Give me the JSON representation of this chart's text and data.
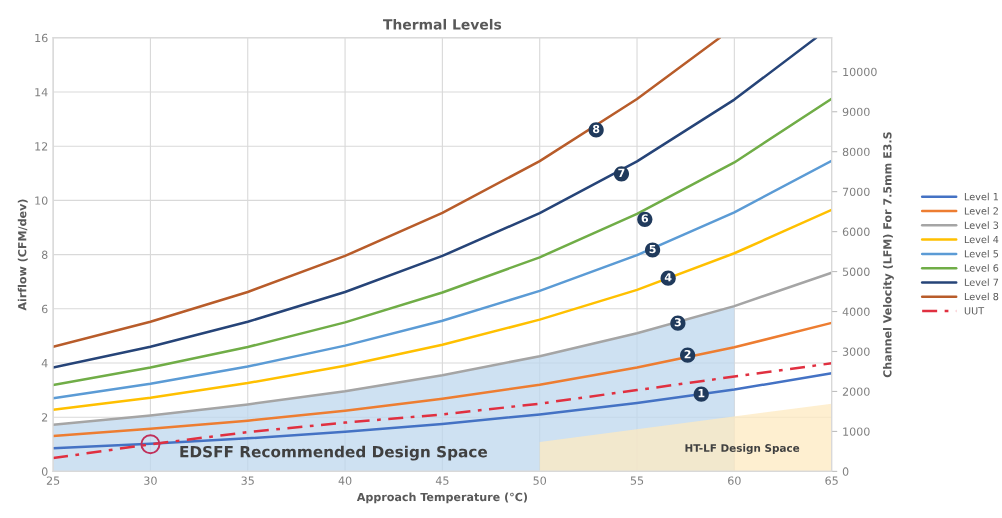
{
  "chart_data": {
    "type": "line",
    "title": "Thermal Levels",
    "xlabel": "Approach Temperature (°C)",
    "ylabel": "Airflow (CFM/dev)",
    "y2label": "Channel Velocity (LFM) For 7.5mm E3.S",
    "x": [
      25,
      30,
      35,
      40,
      45,
      50,
      55,
      60,
      65
    ],
    "series": [
      {
        "type": "area",
        "color": "#bdd7ee",
        "x": [
          25,
          30,
          35,
          40,
          45,
          50,
          55,
          60
        ],
        "values": [
          1.72,
          2.06,
          2.47,
          2.96,
          3.55,
          4.25,
          5.1,
          6.1
        ]
      },
      {
        "type": "area",
        "color": "#fde9c0",
        "x": [
          50,
          65
        ],
        "values": [
          1.08,
          2.5
        ]
      },
      {
        "name": "Level 1",
        "color": "#4472c4",
        "values": [
          0.85,
          1.02,
          1.22,
          1.46,
          1.75,
          2.1,
          2.52,
          3.02,
          3.62
        ]
      },
      {
        "name": "Level 2",
        "color": "#ed7d31",
        "values": [
          1.31,
          1.57,
          1.87,
          2.24,
          2.68,
          3.2,
          3.83,
          4.58,
          5.48
        ]
      },
      {
        "name": "Level 3",
        "color": "#a5a5a5",
        "values": [
          1.72,
          2.06,
          2.47,
          2.96,
          3.55,
          4.25,
          5.1,
          6.1,
          7.33
        ]
      },
      {
        "name": "Level 4",
        "color": "#ffc000",
        "values": [
          2.27,
          2.72,
          3.26,
          3.9,
          4.67,
          5.6,
          6.7,
          8.05,
          9.65
        ]
      },
      {
        "name": "Level 5",
        "color": "#5b9bd5",
        "values": [
          2.7,
          3.23,
          3.87,
          4.64,
          5.56,
          6.66,
          7.98,
          9.56,
          11.46
        ]
      },
      {
        "name": "Level 6",
        "color": "#70ad47",
        "values": [
          3.19,
          3.83,
          4.59,
          5.5,
          6.6,
          7.9,
          9.5,
          11.4,
          13.75
        ]
      },
      {
        "name": "Level 7",
        "color": "#264478",
        "x": [
          25,
          30,
          35,
          40,
          45,
          50,
          55,
          60,
          64.2
        ],
        "values": [
          3.83,
          4.6,
          5.52,
          6.62,
          7.95,
          9.53,
          11.44,
          13.72,
          16.0
        ]
      },
      {
        "name": "Level 8",
        "color": "#b85c2a",
        "x": [
          25,
          30,
          35,
          40,
          45,
          50,
          55,
          59.25
        ],
        "values": [
          4.6,
          5.52,
          6.62,
          7.95,
          9.54,
          11.45,
          13.74,
          16.0
        ]
      },
      {
        "name": "UUT",
        "color": "#e03040",
        "line_style": "dashdot",
        "values": [
          0.49,
          1.0,
          1.45,
          1.8,
          2.1,
          2.5,
          3.0,
          3.5,
          3.99
        ]
      },
      {
        "type": "scatter",
        "color": "#c0305a",
        "marker": "circle",
        "x": [
          30
        ],
        "values": [
          1.0
        ]
      }
    ],
    "annotations": [
      {
        "text": "1",
        "x": 58.3,
        "y": 2.85
      },
      {
        "text": "2",
        "x": 57.6,
        "y": 4.29
      },
      {
        "text": "3",
        "x": 57.1,
        "y": 5.47
      },
      {
        "text": "4",
        "x": 56.6,
        "y": 7.13
      },
      {
        "text": "5",
        "x": 55.8,
        "y": 8.17
      },
      {
        "text": "6",
        "x": 55.4,
        "y": 9.3
      },
      {
        "text": "7",
        "x": 54.2,
        "y": 10.98
      },
      {
        "text": "8",
        "x": 52.9,
        "y": 12.6
      },
      "EDSFF Recommended Design Space",
      "HT-LF Design Space"
    ],
    "xlim": [
      25,
      65
    ],
    "xticks": [
      25,
      30,
      35,
      40,
      45,
      50,
      55,
      60,
      65
    ],
    "ylim": [
      0,
      16
    ],
    "yticks": [
      0,
      2,
      4,
      6,
      8,
      10,
      12,
      14,
      16
    ],
    "y2lim": [
      0,
      10850
    ],
    "y2ticks": [
      0,
      1000,
      2000,
      3000,
      4000,
      5000,
      6000,
      7000,
      8000,
      9000,
      10000
    ],
    "grid": true,
    "legend": "right"
  }
}
